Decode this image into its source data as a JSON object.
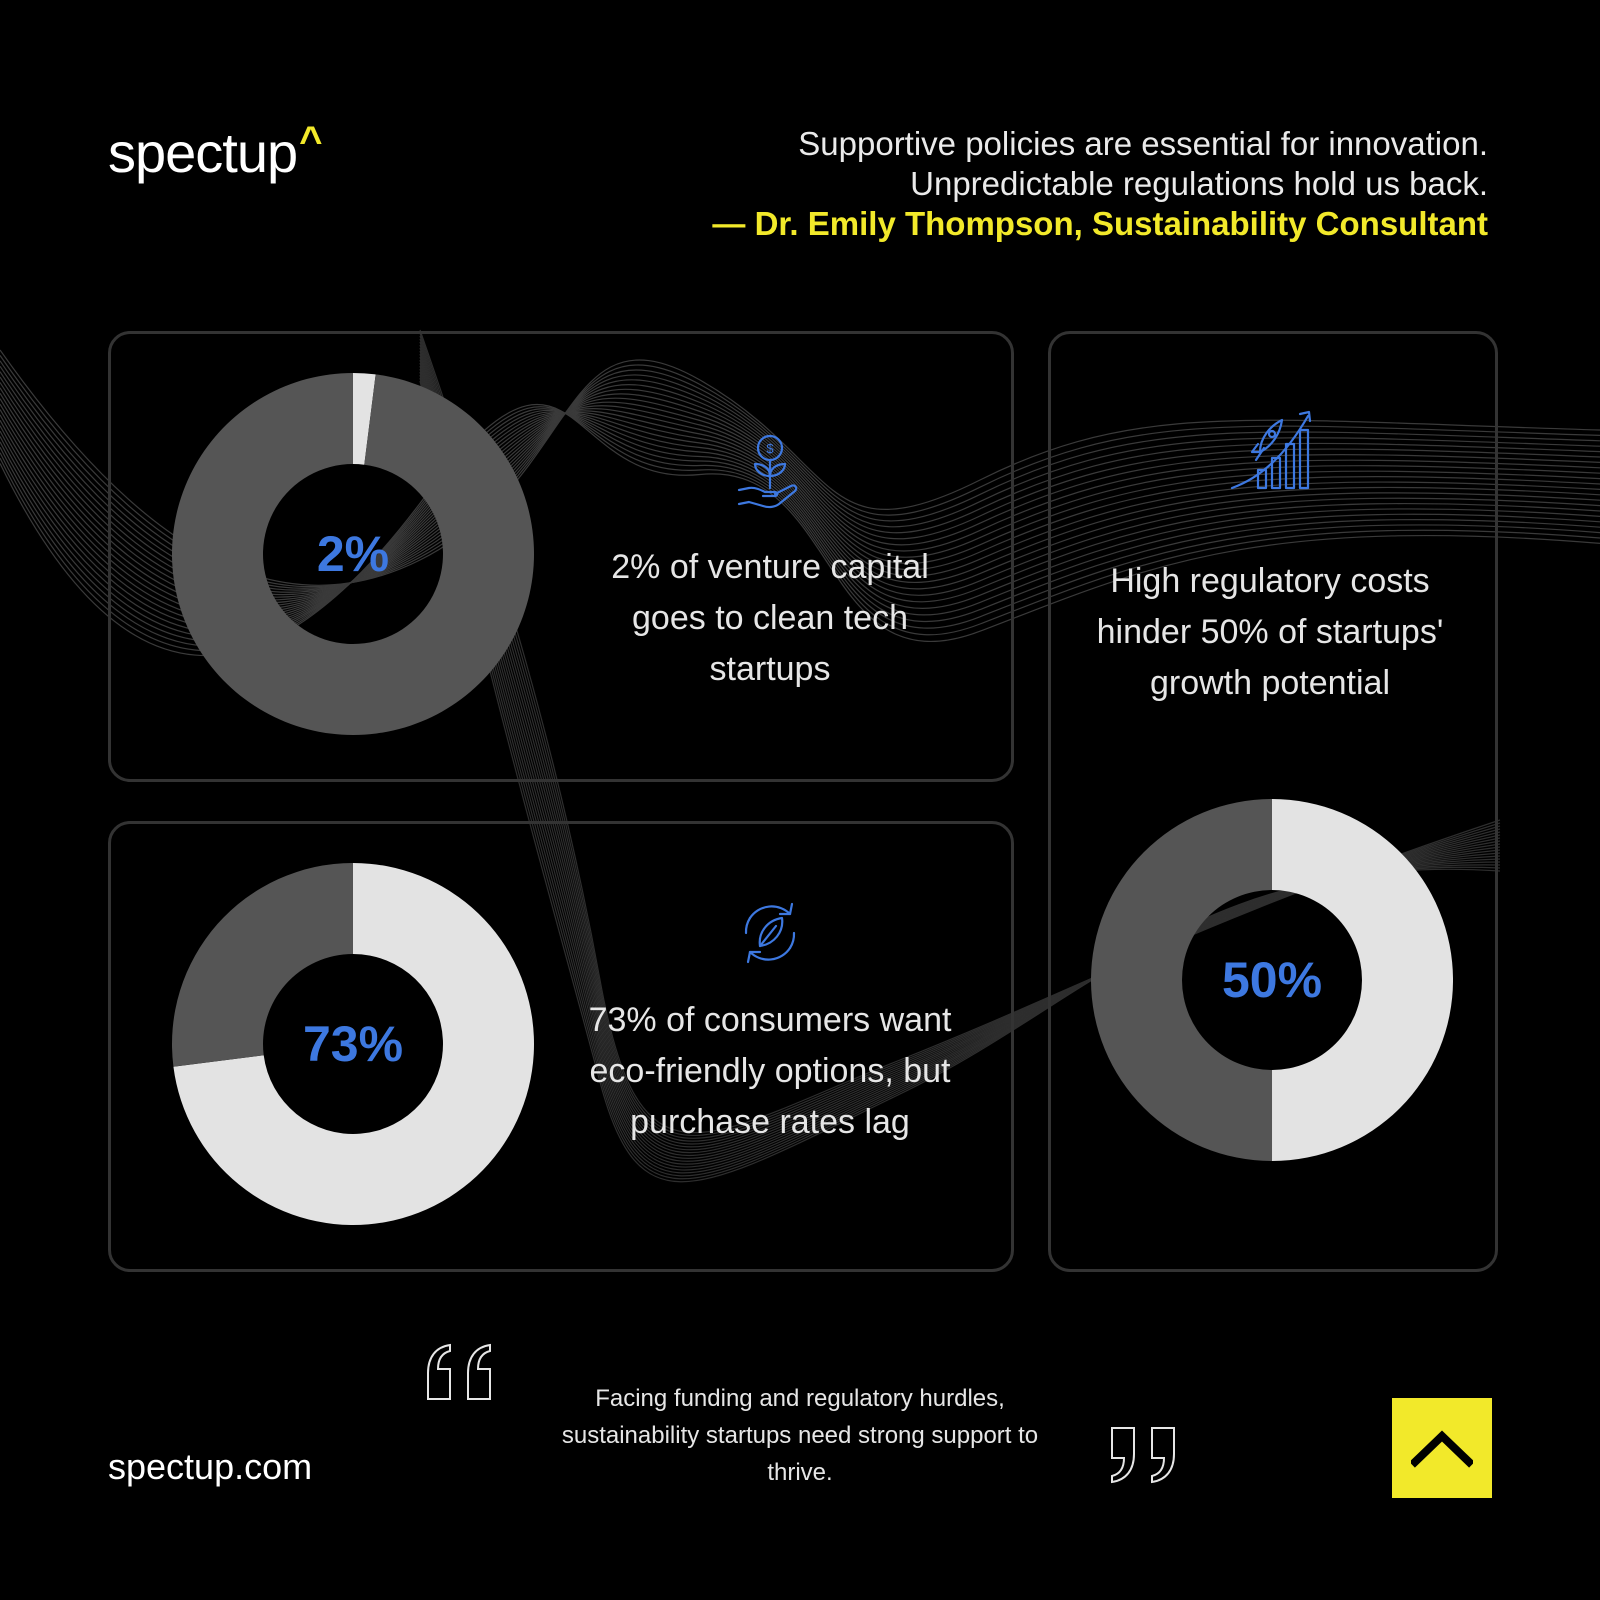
{
  "brand": {
    "logo_text": "spectup",
    "logo_caret": "^",
    "url": "spectup.com",
    "accent": "#f2e92a"
  },
  "header_quote": {
    "line1": "Supportive policies are essential for innovation.",
    "line2": "Unpredictable regulations hold us back.",
    "attribution": "— Dr. Emily Thompson, Sustainability Consultant"
  },
  "colors": {
    "highlight": "#3d78e0",
    "segment_light": "#e3e3e3",
    "segment_dark": "#555555",
    "card_border": "#333333"
  },
  "chart_data": [
    {
      "type": "pie",
      "label": "2%",
      "values": [
        2,
        98
      ],
      "description": "2% of venture capital goes to clean tech startups",
      "icon": "plant-hand-dollar-icon"
    },
    {
      "type": "pie",
      "label": "50%",
      "values": [
        50,
        50
      ],
      "description": "High regulatory costs hinder 50% of startups' growth potential",
      "icon": "rocket-growth-chart-icon"
    },
    {
      "type": "pie",
      "label": "73%",
      "values": [
        73,
        27
      ],
      "description": "73% of consumers want eco-friendly options, but purchase rates lag",
      "icon": "recycle-leaf-icon"
    }
  ],
  "bottom_quote": "Facing funding and regulatory hurdles, sustainability startups need strong support to thrive.",
  "scroll_top_icon": "chevron-up-icon"
}
